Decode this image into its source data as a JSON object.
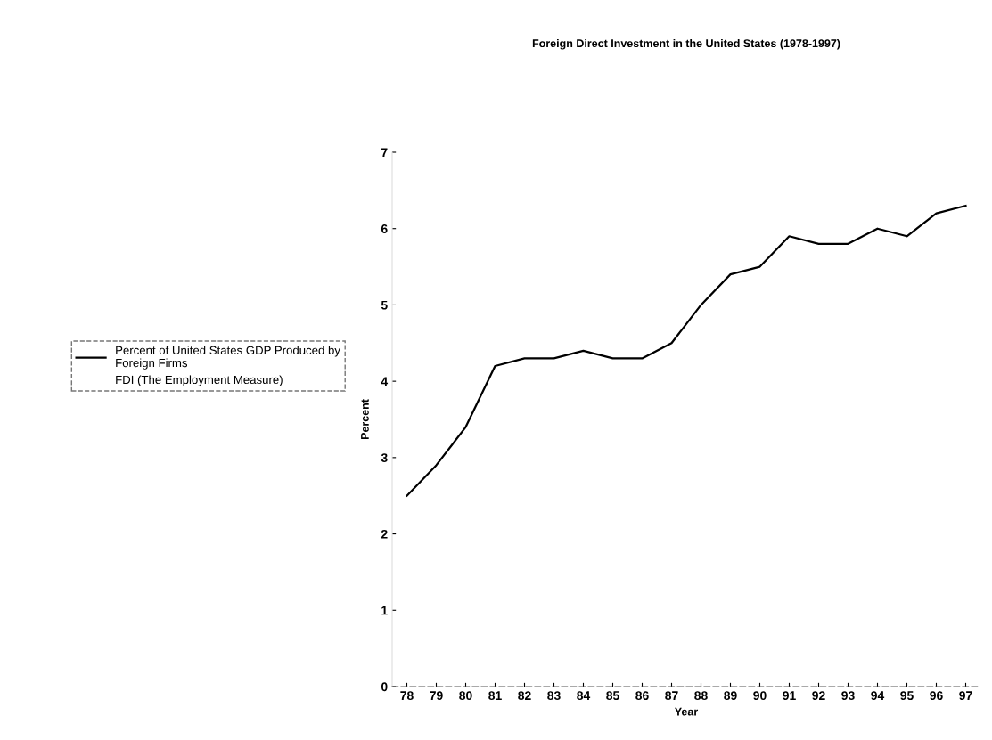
{
  "chart_data": {
    "type": "line",
    "title": "Foreign Direct Investment in the United States (1978-1997)",
    "xlabel": "Year",
    "ylabel": "Percent",
    "categories": [
      "78",
      "79",
      "80",
      "81",
      "82",
      "83",
      "84",
      "85",
      "86",
      "87",
      "88",
      "89",
      "90",
      "91",
      "92",
      "93",
      "94",
      "95",
      "96",
      "97"
    ],
    "series": [
      {
        "name": "Percent of United States GDP Produced by\nForeign Firms",
        "color": "#000000",
        "values": [
          2.5,
          2.9,
          3.4,
          4.2,
          4.3,
          4.3,
          4.4,
          4.3,
          4.3,
          4.5,
          5.0,
          5.4,
          5.5,
          5.9,
          5.8,
          5.8,
          6.0,
          5.9,
          6.2,
          6.3
        ]
      },
      {
        "name": "FDI (The Employment Measure)",
        "values": [
          null,
          null,
          null,
          null,
          null,
          null,
          null,
          null,
          null,
          null,
          null,
          null,
          null,
          null,
          null,
          null,
          null,
          null,
          null,
          null
        ]
      }
    ],
    "ylim": [
      0,
      7
    ],
    "yticks": [
      0,
      1,
      2,
      3,
      4,
      5,
      6,
      7
    ],
    "grid": false,
    "legend": "left",
    "marker": "none",
    "line_style": "solid"
  }
}
